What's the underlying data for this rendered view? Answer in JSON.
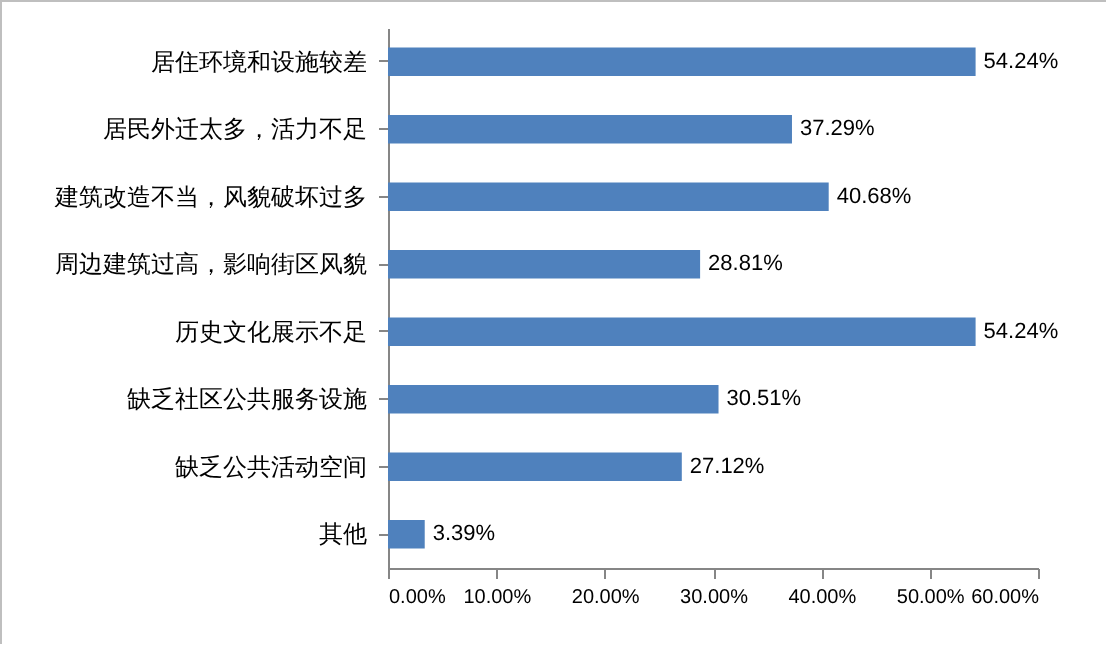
{
  "chart_data": {
    "type": "bar",
    "orientation": "horizontal",
    "categories": [
      "居住环境和设施较差",
      "居民外迁太多，活力不足",
      "建筑改造不当，风貌破坏过多",
      "周边建筑过高，影响街区风貌",
      "历史文化展示不足",
      "缺乏社区公共服务设施",
      "缺乏公共活动空间",
      "其他"
    ],
    "values": [
      54.24,
      37.29,
      40.68,
      28.81,
      54.24,
      30.51,
      27.12,
      3.39
    ],
    "value_labels": [
      "54.24%",
      "37.29%",
      "40.68%",
      "28.81%",
      "54.24%",
      "30.51%",
      "27.12%",
      "3.39%"
    ],
    "color": "#4f81bd",
    "xlim": [
      0,
      60
    ],
    "xticks": [
      {
        "value": 0,
        "label": "0.00%"
      },
      {
        "value": 10,
        "label": "10.00%"
      },
      {
        "value": 20,
        "label": "20.00%"
      },
      {
        "value": 30,
        "label": "30.00%"
      },
      {
        "value": 40,
        "label": "40.00%"
      },
      {
        "value": 50,
        "label": "50.00%"
      },
      {
        "value": 60,
        "label": "60.00%"
      }
    ],
    "grid": false
  }
}
